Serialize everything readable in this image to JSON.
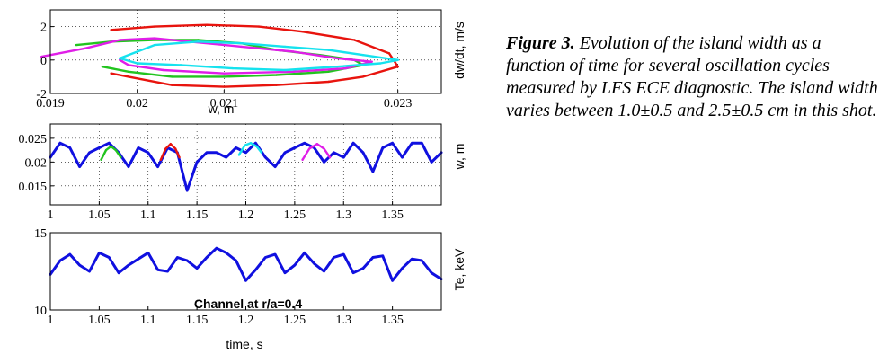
{
  "caption": {
    "label": "Figure 3.",
    "text": " Evolution of the island width as a function of time for several oscillation cycles measured by LFS ECE diagnostic. The island width varies between 1.0±0.5 and 2.5±0.5 cm in this shot."
  },
  "chart_data": [
    {
      "type": "line",
      "panel": "phase-portrait",
      "title": "",
      "xlabel": "w, m",
      "ylabel": "dw/dt, m/s",
      "xlim": [
        0.019,
        0.0235
      ],
      "ylim": [
        -2,
        3
      ],
      "xticks": [
        0.019,
        0.02,
        0.021,
        0.023
      ],
      "xtick_labels": [
        "0.019",
        "0.02",
        "0.021",
        "0.023"
      ],
      "yticks": [
        -2,
        0,
        2
      ],
      "ytick_labels": [
        "-2",
        "0",
        "2"
      ],
      "grid": "dotted",
      "series": [
        {
          "color": "#e8140e",
          "x": [
            0.0197,
            0.0202,
            0.0208,
            0.0214,
            0.0219,
            0.0225,
            0.0229,
            0.023,
            0.0226,
            0.0222,
            0.0216,
            0.021,
            0.0204,
            0.0199,
            0.0197
          ],
          "y": [
            1.8,
            2.0,
            2.1,
            2.0,
            1.7,
            1.2,
            0.4,
            -0.4,
            -1.0,
            -1.3,
            -1.5,
            -1.6,
            -1.5,
            -1.0,
            -0.8
          ]
        },
        {
          "color": "#22c41f",
          "x": [
            0.0193,
            0.0197,
            0.0202,
            0.0207,
            0.0212,
            0.0216,
            0.0221,
            0.0225,
            0.0226,
            0.0222,
            0.0216,
            0.021,
            0.0204,
            0.0199,
            0.0196
          ],
          "y": [
            0.9,
            1.1,
            1.2,
            1.2,
            1.0,
            0.6,
            0.3,
            0.0,
            -0.3,
            -0.7,
            -0.9,
            -1.0,
            -1.0,
            -0.7,
            -0.4
          ]
        },
        {
          "color": "#e01ee8",
          "x": [
            0.0189,
            0.0194,
            0.0198,
            0.0202,
            0.0206,
            0.0212,
            0.0218,
            0.0223,
            0.0227,
            0.0224,
            0.0218,
            0.021,
            0.0203,
            0.0199,
            0.0198
          ],
          "y": [
            0.2,
            0.7,
            1.2,
            1.3,
            1.1,
            0.8,
            0.5,
            0.1,
            -0.1,
            -0.5,
            -0.7,
            -0.8,
            -0.6,
            -0.3,
            0.0
          ]
        },
        {
          "color": "#16e2ee",
          "x": [
            0.0198,
            0.0202,
            0.0207,
            0.0212,
            0.0217,
            0.0222,
            0.0226,
            0.023,
            0.0228,
            0.0223,
            0.0217,
            0.0211,
            0.0205,
            0.02,
            0.0198
          ],
          "y": [
            0.1,
            0.9,
            1.1,
            1.0,
            0.8,
            0.6,
            0.3,
            0.0,
            -0.2,
            -0.4,
            -0.6,
            -0.5,
            -0.3,
            -0.2,
            0.1
          ]
        }
      ]
    },
    {
      "type": "line",
      "panel": "island-width",
      "title": "",
      "xlabel": "",
      "ylabel": "w, m",
      "xlim": [
        1,
        1.4
      ],
      "ylim": [
        0.011,
        0.028
      ],
      "xticks": [
        1,
        1.05,
        1.1,
        1.15,
        1.2,
        1.25,
        1.3,
        1.35
      ],
      "xtick_labels": [
        "1",
        "1.05",
        "1.1",
        "1.15",
        "1.2",
        "1.25",
        "1.3",
        "1.35"
      ],
      "yticks": [
        0.015,
        0.02,
        0.025
      ],
      "ytick_labels": [
        "0.015",
        "0.02",
        "0.025"
      ],
      "grid": "dotted",
      "series": [
        {
          "color": "#1010e0",
          "x": [
            1.0,
            1.01,
            1.02,
            1.03,
            1.04,
            1.05,
            1.06,
            1.07,
            1.08,
            1.09,
            1.1,
            1.11,
            1.12,
            1.13,
            1.14,
            1.15,
            1.16,
            1.17,
            1.18,
            1.19,
            1.2,
            1.21,
            1.22,
            1.23,
            1.24,
            1.25,
            1.26,
            1.27,
            1.28,
            1.29,
            1.3,
            1.31,
            1.32,
            1.33,
            1.34,
            1.35,
            1.36,
            1.37,
            1.38,
            1.39,
            1.4
          ],
          "y": [
            0.021,
            0.024,
            0.023,
            0.019,
            0.022,
            0.023,
            0.024,
            0.022,
            0.019,
            0.023,
            0.022,
            0.019,
            0.023,
            0.022,
            0.014,
            0.02,
            0.022,
            0.022,
            0.021,
            0.023,
            0.022,
            0.024,
            0.021,
            0.019,
            0.022,
            0.023,
            0.024,
            0.023,
            0.02,
            0.022,
            0.021,
            0.024,
            0.022,
            0.018,
            0.023,
            0.024,
            0.021,
            0.024,
            0.024,
            0.02,
            0.022
          ]
        },
        {
          "color": "#22c41f",
          "x": [
            1.052,
            1.057,
            1.062,
            1.067,
            1.072
          ],
          "y": [
            0.0205,
            0.0225,
            0.0233,
            0.0225,
            0.021
          ]
        },
        {
          "color": "#e8140e",
          "x": [
            1.113,
            1.118,
            1.123,
            1.128,
            1.132
          ],
          "y": [
            0.0205,
            0.0228,
            0.0238,
            0.0228,
            0.021
          ]
        },
        {
          "color": "#16e2ee",
          "x": [
            1.193,
            1.199,
            1.205,
            1.211,
            1.216
          ],
          "y": [
            0.0215,
            0.0235,
            0.024,
            0.0233,
            0.022
          ]
        },
        {
          "color": "#e01ee8",
          "x": [
            1.258,
            1.265,
            1.273,
            1.28,
            1.286
          ],
          "y": [
            0.0205,
            0.0228,
            0.0238,
            0.0228,
            0.021
          ]
        }
      ]
    },
    {
      "type": "line",
      "panel": "electron-temperature",
      "title": "",
      "xlabel": "time, s",
      "ylabel": "Te, keV",
      "xlim": [
        1,
        1.4
      ],
      "ylim": [
        10,
        15
      ],
      "xticks": [
        1,
        1.05,
        1.1,
        1.15,
        1.2,
        1.25,
        1.3,
        1.35
      ],
      "xtick_labels": [
        "1",
        "1.05",
        "1.1",
        "1.15",
        "1.2",
        "1.25",
        "1.3",
        "1.35"
      ],
      "yticks": [
        10,
        15
      ],
      "ytick_labels": [
        "10",
        "15"
      ],
      "grid": "none",
      "annotations": [
        "Channel at r/a=0.4"
      ],
      "series": [
        {
          "color": "#1010e0",
          "x": [
            1.0,
            1.01,
            1.02,
            1.03,
            1.04,
            1.05,
            1.06,
            1.07,
            1.08,
            1.09,
            1.1,
            1.11,
            1.12,
            1.13,
            1.14,
            1.15,
            1.16,
            1.17,
            1.18,
            1.19,
            1.2,
            1.21,
            1.22,
            1.23,
            1.24,
            1.25,
            1.26,
            1.27,
            1.28,
            1.29,
            1.3,
            1.31,
            1.32,
            1.33,
            1.34,
            1.35,
            1.36,
            1.37,
            1.38,
            1.39,
            1.4
          ],
          "y": [
            12.3,
            13.2,
            13.6,
            12.9,
            12.5,
            13.7,
            13.4,
            12.4,
            12.9,
            13.3,
            13.7,
            12.6,
            12.5,
            13.4,
            13.2,
            12.7,
            13.4,
            14.0,
            13.7,
            13.2,
            11.9,
            12.6,
            13.4,
            13.6,
            12.4,
            12.9,
            13.7,
            13.0,
            12.5,
            13.4,
            13.6,
            12.4,
            12.7,
            13.4,
            13.5,
            11.9,
            12.7,
            13.3,
            13.2,
            12.4,
            12.0
          ]
        }
      ]
    }
  ]
}
